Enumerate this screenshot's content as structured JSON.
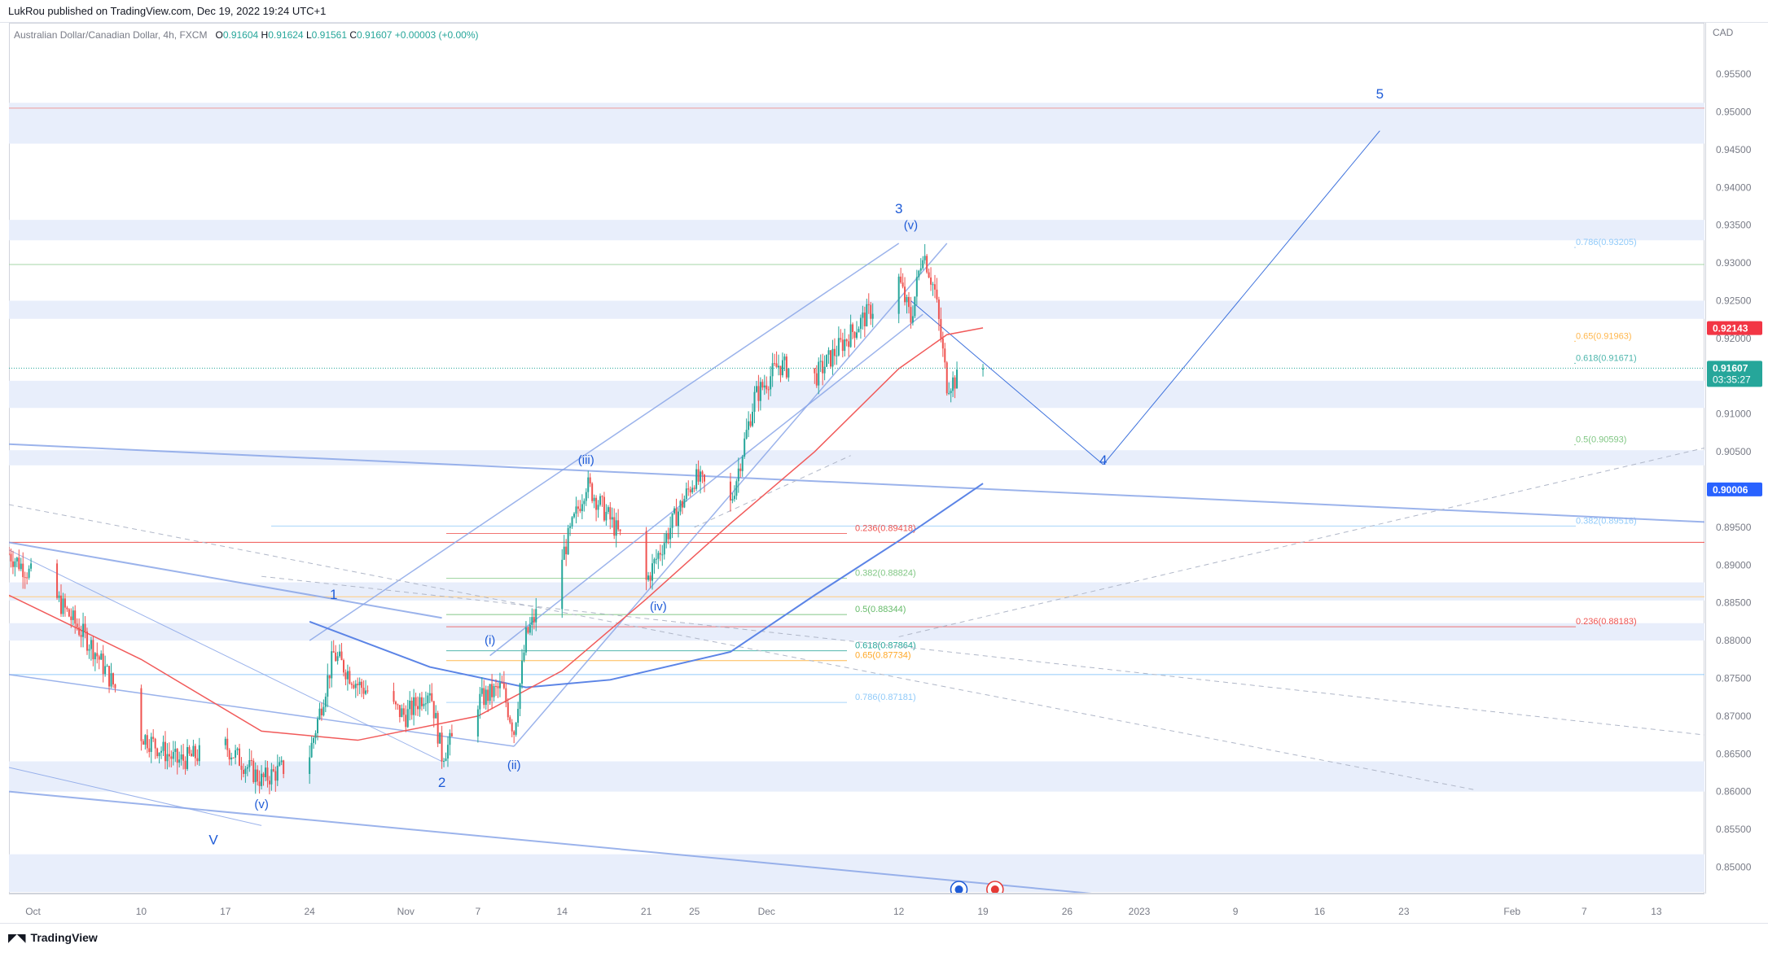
{
  "header": {
    "published_text": "LukRou published on TradingView.com, Dec 19, 2022 19:24 UTC+1"
  },
  "legend": {
    "symbol_text": "Australian Dollar/Canadian Dollar, 4h, FXCM",
    "o_label": "O",
    "o_value": "0.91604",
    "h_label": "H",
    "h_value": "0.91624",
    "l_label": "L",
    "l_value": "0.91561",
    "c_label": "C",
    "c_value": "0.91607",
    "change": "+0.00003 (+0.00%)"
  },
  "footer": {
    "brand": "TradingView"
  },
  "colors": {
    "up": "#26a69a",
    "down": "#ef5350",
    "band": "#e8eefb",
    "wave": "#1e5bd7",
    "trendline": "#8aa6e8",
    "ma": "#f15a5a",
    "blue_ma": "#5b84e6",
    "current_price": "#26a69a",
    "ma_tag": "#f23645",
    "level_tag": "#2962ff"
  },
  "chart_data": {
    "type": "candlestick",
    "title": "",
    "instrument": "Australian Dollar/Canadian Dollar",
    "timeframe": "4h",
    "currency_label": "CAD",
    "ylim": [
      0.8466,
      0.9618
    ],
    "y_ticks": [
      "0.95500",
      "0.95000",
      "0.94500",
      "0.94000",
      "0.93500",
      "0.93000",
      "0.92500",
      "0.92000",
      "0.91500",
      "0.91000",
      "0.90500",
      "0.90000",
      "0.89500",
      "0.89000",
      "0.88500",
      "0.88000",
      "0.87500",
      "0.87000",
      "0.86500",
      "0.86000",
      "0.85500",
      "0.85000"
    ],
    "x_ticks": [
      "Oct",
      "10",
      "17",
      "24",
      "Nov",
      "7",
      "14",
      "21",
      "25",
      "Dec",
      "12",
      "19",
      "26",
      "2023",
      "9",
      "16",
      "23",
      "Feb",
      "7",
      "13"
    ],
    "price_tags": [
      {
        "label": "CAD",
        "price": 0.9595,
        "kind": "currency"
      },
      {
        "label": "0.92143",
        "price": 0.92143,
        "kind": "ma"
      },
      {
        "label": "0.91607",
        "sub": "03:35:27",
        "price": 0.91607,
        "kind": "current"
      },
      {
        "label": "0.90006",
        "price": 0.90006,
        "kind": "level"
      }
    ],
    "wave_labels": [
      {
        "text": "1",
        "x": "2022-10-26",
        "price": 0.8855
      },
      {
        "text": "2",
        "x": "2022-11-04",
        "price": 0.8606
      },
      {
        "text": "3",
        "x": "2022-12-12",
        "price": 0.9366
      },
      {
        "text": "4",
        "x": "2022-12-29",
        "price": 0.9033
      },
      {
        "text": "5",
        "x": "2023-01-21",
        "price": 0.9518
      },
      {
        "text": "(i)",
        "x": "2022-11-08",
        "price": 0.8795
      },
      {
        "text": "(ii)",
        "x": "2022-11-10",
        "price": 0.863
      },
      {
        "text": "(iii)",
        "x": "2022-11-16",
        "price": 0.9034
      },
      {
        "text": "(iv)",
        "x": "2022-11-22",
        "price": 0.884
      },
      {
        "text": "(v)",
        "x": "2022-12-13",
        "price": 0.9345
      },
      {
        "text": "(v)",
        "x": "2022-10-20",
        "price": 0.8578
      },
      {
        "text": "V",
        "x": "2022-10-16",
        "price": 0.853
      }
    ],
    "fib_levels": [
      {
        "label": "0.786(0.93205)",
        "price": 0.93205,
        "color": "#90caf9"
      },
      {
        "label": "0.65(0.91963)",
        "price": 0.91963,
        "color": "#ffb74d"
      },
      {
        "label": "0.618(0.91671)",
        "price": 0.91671,
        "color": "#4db6ac"
      },
      {
        "label": "0.5(0.90593)",
        "price": 0.90593,
        "color": "#81c784"
      },
      {
        "label": "0.382(0.89516)",
        "price": 0.89516,
        "color": "#90caf9"
      },
      {
        "label": "0.236(0.89418)",
        "price": 0.89418,
        "color": "#ef5350"
      },
      {
        "label": "0.382(0.88824)",
        "price": 0.88824,
        "color": "#81c784"
      },
      {
        "label": "0.5(0.88344)",
        "price": 0.88344,
        "color": "#66bb6a"
      },
      {
        "label": "0.618(0.87864)",
        "price": 0.87864,
        "color": "#26a69a"
      },
      {
        "label": "0.65(0.87734)",
        "price": 0.87734,
        "color": "#ffa726"
      },
      {
        "label": "0.786(0.87181)",
        "price": 0.87181,
        "color": "#90caf9"
      },
      {
        "label": "0.236(0.88183)",
        "price": 0.88183,
        "color": "#ef5350"
      }
    ],
    "zones": [
      [
        0.9458,
        0.9512
      ],
      [
        0.933,
        0.9357
      ],
      [
        0.9226,
        0.925
      ],
      [
        0.9108,
        0.9144
      ],
      [
        0.9032,
        0.9052
      ],
      [
        0.8853,
        0.8877
      ],
      [
        0.88,
        0.8823
      ],
      [
        0.86,
        0.864
      ],
      [
        0.8467,
        0.8517
      ]
    ],
    "close_path": [
      [
        "2022-09-29",
        0.8915
      ],
      [
        "2022-10-03",
        0.8855
      ],
      [
        "2022-10-06",
        0.879
      ],
      [
        "2022-10-10",
        0.8675
      ],
      [
        "2022-10-13",
        0.864
      ],
      [
        "2022-10-17",
        0.866
      ],
      [
        "2022-10-20",
        0.8615
      ],
      [
        "2022-10-24",
        0.865
      ],
      [
        "2022-10-26",
        0.8782
      ],
      [
        "2022-10-28",
        0.8742
      ],
      [
        "2022-11-01",
        0.87
      ],
      [
        "2022-11-03",
        0.8738
      ],
      [
        "2022-11-04",
        0.8648
      ],
      [
        "2022-11-07",
        0.872
      ],
      [
        "2022-11-09",
        0.8738
      ],
      [
        "2022-11-10",
        0.868
      ],
      [
        "2022-11-11",
        0.8805
      ],
      [
        "2022-11-14",
        0.891
      ],
      [
        "2022-11-16",
        0.9008
      ],
      [
        "2022-11-18",
        0.896
      ],
      [
        "2022-11-21",
        0.8878
      ],
      [
        "2022-11-23",
        0.895
      ],
      [
        "2022-11-25",
        0.9015
      ],
      [
        "2022-11-28",
        0.898
      ],
      [
        "2022-11-30",
        0.9122
      ],
      [
        "2022-12-02",
        0.9165
      ],
      [
        "2022-12-05",
        0.9148
      ],
      [
        "2022-12-07",
        0.9188
      ],
      [
        "2022-12-09",
        0.9225
      ],
      [
        "2022-12-12",
        0.9278
      ],
      [
        "2022-12-13",
        0.9225
      ],
      [
        "2022-12-14",
        0.9318
      ],
      [
        "2022-12-15",
        0.9262
      ],
      [
        "2022-12-16",
        0.914
      ],
      [
        "2022-12-19",
        0.9161
      ]
    ]
  }
}
